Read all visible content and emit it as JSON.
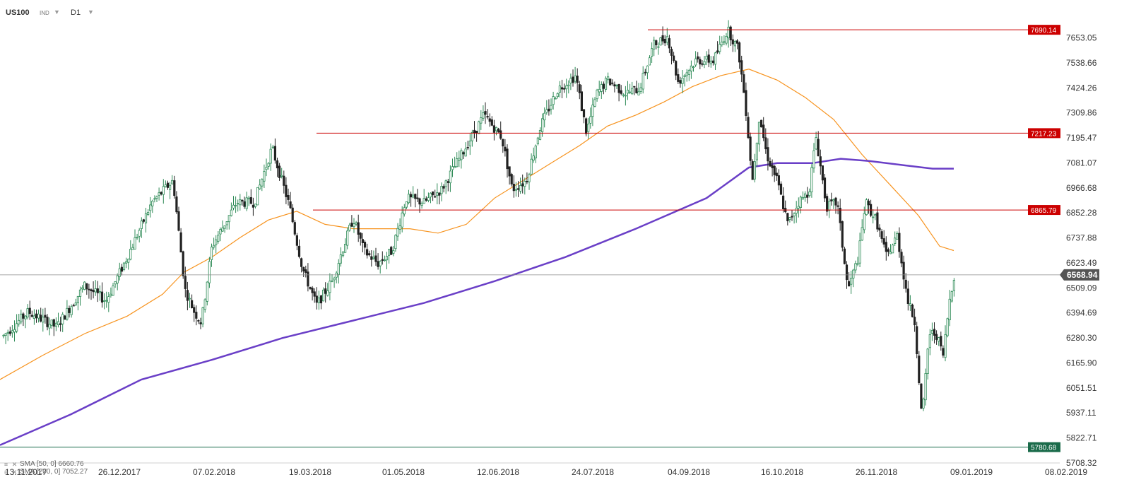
{
  "header": {
    "symbol": "US100",
    "type": "IND",
    "timeframe": "D1"
  },
  "legend": [
    {
      "label": "SMA [50, 0] 6660.76",
      "color": "#f7931e"
    },
    {
      "label": "SMA [200, 0] 7052.27",
      "color": "#6a3fc7"
    }
  ],
  "chart_data": {
    "type": "candlestick",
    "y_ticks": [
      "7653.05",
      "7538.66",
      "7424.26",
      "7309.86",
      "7195.47",
      "7081.07",
      "6966.68",
      "6852.28",
      "6737.88",
      "6623.49",
      "6509.09",
      "6394.69",
      "6280.30",
      "6165.90",
      "6051.51",
      "5937.11",
      "5822.71",
      "5708.32"
    ],
    "x_ticks": [
      "13.11.2017",
      "26.12.2017",
      "07.02.2018",
      "19.03.2018",
      "01.05.2018",
      "12.06.2018",
      "24.07.2018",
      "04.09.2018",
      "16.10.2018",
      "26.11.2018",
      "09.01.2019",
      "08.02.2019"
    ],
    "ylim": [
      5708.32,
      7710
    ],
    "horizontal_levels": [
      {
        "value": 7690.14,
        "label": "7690.14",
        "color": "#cc0000"
      },
      {
        "value": 7217.23,
        "label": "7217.23",
        "color": "#cc0000"
      },
      {
        "value": 6865.79,
        "label": "6865.79",
        "color": "#cc0000"
      },
      {
        "value": 5780.68,
        "label": "5780.68",
        "color": "#1a6b4a"
      }
    ],
    "current_price": {
      "value": 6568.94,
      "label": "6568.94"
    },
    "series": [
      {
        "name": "SMA [50, 0]",
        "color": "#f7931e",
        "points": [
          [
            0,
            6090
          ],
          [
            60,
            6200
          ],
          [
            120,
            6300
          ],
          [
            180,
            6380
          ],
          [
            230,
            6480
          ],
          [
            260,
            6580
          ],
          [
            300,
            6650
          ],
          [
            340,
            6740
          ],
          [
            380,
            6820
          ],
          [
            420,
            6860
          ],
          [
            460,
            6800
          ],
          [
            500,
            6780
          ],
          [
            540,
            6780
          ],
          [
            580,
            6780
          ],
          [
            620,
            6760
          ],
          [
            660,
            6800
          ],
          [
            700,
            6920
          ],
          [
            740,
            7000
          ],
          [
            780,
            7080
          ],
          [
            820,
            7160
          ],
          [
            860,
            7250
          ],
          [
            900,
            7300
          ],
          [
            940,
            7360
          ],
          [
            980,
            7430
          ],
          [
            1020,
            7480
          ],
          [
            1060,
            7510
          ],
          [
            1100,
            7460
          ],
          [
            1140,
            7380
          ],
          [
            1180,
            7280
          ],
          [
            1220,
            7120
          ],
          [
            1260,
            6980
          ],
          [
            1300,
            6840
          ],
          [
            1330,
            6700
          ],
          [
            1350,
            6680
          ]
        ]
      },
      {
        "name": "SMA [200, 0]",
        "color": "#6a3fc7",
        "points": [
          [
            0,
            5790
          ],
          [
            100,
            5930
          ],
          [
            200,
            6090
          ],
          [
            300,
            6180
          ],
          [
            400,
            6280
          ],
          [
            500,
            6360
          ],
          [
            600,
            6440
          ],
          [
            700,
            6540
          ],
          [
            800,
            6650
          ],
          [
            900,
            6780
          ],
          [
            1000,
            6920
          ],
          [
            1060,
            7060
          ],
          [
            1100,
            7080
          ],
          [
            1150,
            7080
          ],
          [
            1190,
            7100
          ],
          [
            1230,
            7090
          ],
          [
            1280,
            7070
          ],
          [
            1320,
            7055
          ],
          [
            1350,
            7055
          ]
        ]
      }
    ]
  }
}
